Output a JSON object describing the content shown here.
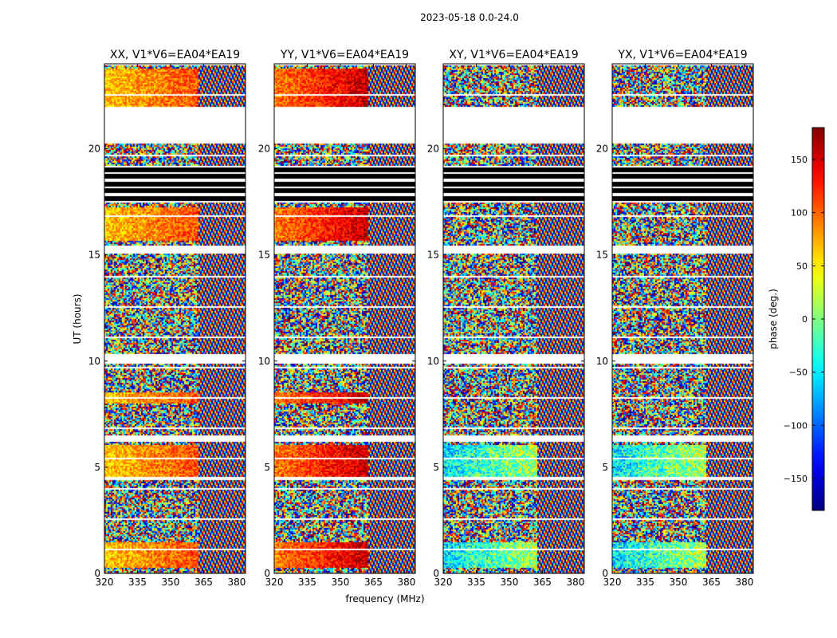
{
  "suptitle": "2023-05-18 0.0-24.0",
  "chart_data": {
    "type": "heatmap",
    "description_of_axes": "Four waterfall panels of visibility phase versus frequency and UT",
    "panels": [
      {
        "title": "XX, V1*V6=EA04*EA19"
      },
      {
        "title": "YY, V1*V6=EA04*EA19"
      },
      {
        "title": "XY, V1*V6=EA04*EA19"
      },
      {
        "title": "YX, V1*V6=EA04*EA19"
      }
    ],
    "xlabel": "frequency (MHz)",
    "ylabel": "UT (hours)",
    "xlim": [
      320,
      384
    ],
    "ylim": [
      0,
      24
    ],
    "xticks": [
      320,
      335,
      350,
      365,
      380
    ],
    "yticks": [
      0,
      5,
      10,
      15,
      20
    ],
    "colorbar": {
      "label": "phase (deg.)",
      "range": [
        -180,
        180
      ],
      "ticks": [
        150,
        100,
        50,
        0,
        -50,
        -100,
        -150
      ],
      "tick_labels": [
        "150",
        "100",
        "50",
        "0",
        "−50",
        "−100",
        "−150"
      ],
      "colormap": "jet"
    },
    "empty_ut_bands": [
      [
        20.3,
        22.0
      ],
      [
        15.1,
        15.5
      ],
      [
        9.95,
        10.35
      ],
      [
        6.25,
        6.55
      ],
      [
        4.45,
        4.6
      ]
    ],
    "flagged_black_band": [
      17.5,
      19.2
    ]
  }
}
